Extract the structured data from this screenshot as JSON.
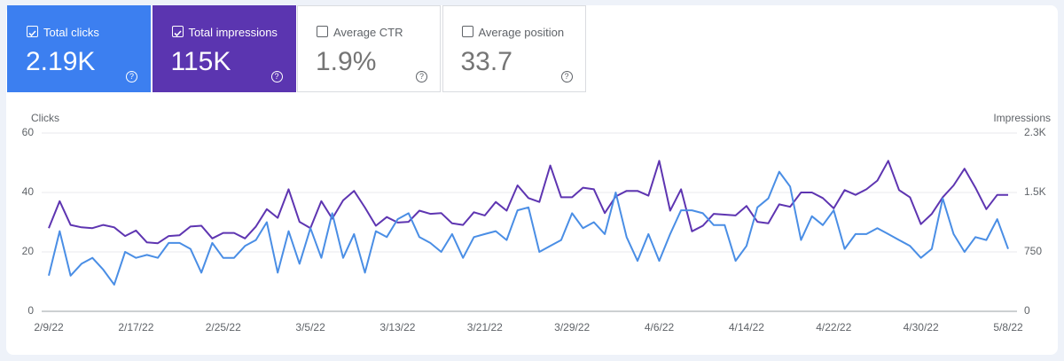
{
  "cards": [
    {
      "label": "Total clicks",
      "value": "2.19K",
      "checked": true,
      "color": "#3c7ff0"
    },
    {
      "label": "Total impressions",
      "value": "115K",
      "checked": true,
      "color": "#5b35b0"
    },
    {
      "label": "Average CTR",
      "value": "1.9%",
      "checked": false,
      "color": "#ffffff"
    },
    {
      "label": "Average position",
      "value": "33.7",
      "checked": false,
      "color": "#ffffff"
    }
  ],
  "chart_data": {
    "type": "line",
    "ylabel": "Clicks",
    "y2label": "Impressions",
    "categories": [
      "2/9/22",
      null,
      null,
      null,
      null,
      null,
      null,
      null,
      "2/17/22",
      null,
      null,
      null,
      null,
      null,
      null,
      null,
      "2/25/22",
      null,
      null,
      null,
      null,
      null,
      null,
      null,
      "3/5/22",
      null,
      null,
      null,
      null,
      null,
      null,
      null,
      "3/13/22",
      null,
      null,
      null,
      null,
      null,
      null,
      null,
      "3/21/22",
      null,
      null,
      null,
      null,
      null,
      null,
      null,
      "3/29/22",
      null,
      null,
      null,
      null,
      null,
      null,
      null,
      "4/6/22",
      null,
      null,
      null,
      null,
      null,
      null,
      null,
      "4/14/22",
      null,
      null,
      null,
      null,
      null,
      null,
      null,
      "4/22/22",
      null,
      null,
      null,
      null,
      null,
      null,
      null,
      "4/30/22",
      null,
      null,
      null,
      null,
      null,
      null,
      null,
      "5/8/22"
    ],
    "ylim": [
      0,
      60
    ],
    "yticks": [
      0,
      20,
      40,
      60
    ],
    "y2lim": [
      0,
      2250
    ],
    "y2ticks": [
      0,
      750,
      {
        "value": 1500,
        "label": "1.5K"
      },
      {
        "value": 2250,
        "label": "2.3K"
      }
    ],
    "grid": true,
    "series": [
      {
        "name": "Clicks",
        "color": "#4a8ee5",
        "values": [
          12,
          27,
          12,
          16,
          18,
          14,
          9,
          20,
          18,
          19,
          18,
          23,
          23,
          21,
          13,
          23,
          18,
          18,
          22,
          24,
          30,
          13,
          27,
          16,
          28,
          18,
          33,
          18,
          26,
          13,
          27,
          25,
          31,
          33,
          25,
          23,
          20,
          26,
          18,
          25,
          26,
          27,
          24,
          34,
          35,
          20,
          22,
          24,
          33,
          28,
          30,
          26,
          40,
          25,
          17,
          26,
          17,
          26,
          34,
          34,
          33,
          29,
          29,
          17,
          22,
          35,
          38,
          47,
          42,
          24,
          32,
          29,
          34,
          21,
          26,
          26,
          28,
          26,
          24,
          22,
          18,
          21,
          38,
          26,
          20,
          25,
          24,
          31,
          21
        ]
      },
      {
        "name": "Impressions",
        "color": "#5e35b1",
        "axis": "y2",
        "values": [
          1050,
          1390,
          1090,
          1060,
          1050,
          1090,
          1060,
          950,
          1020,
          870,
          860,
          950,
          960,
          1070,
          1080,
          920,
          990,
          990,
          920,
          1070,
          1290,
          1180,
          1540,
          1130,
          1050,
          1390,
          1170,
          1400,
          1520,
          1310,
          1080,
          1190,
          1120,
          1130,
          1270,
          1230,
          1240,
          1110,
          1090,
          1250,
          1210,
          1380,
          1270,
          1590,
          1430,
          1380,
          1840,
          1440,
          1440,
          1560,
          1540,
          1240,
          1450,
          1520,
          1520,
          1460,
          1900,
          1270,
          1540,
          1010,
          1080,
          1230,
          1220,
          1210,
          1330,
          1130,
          1110,
          1350,
          1320,
          1500,
          1500,
          1430,
          1300,
          1530,
          1470,
          1540,
          1650,
          1900,
          1530,
          1440,
          1100,
          1230,
          1440,
          1590,
          1800,
          1560,
          1290,
          1470,
          1470
        ]
      }
    ]
  }
}
